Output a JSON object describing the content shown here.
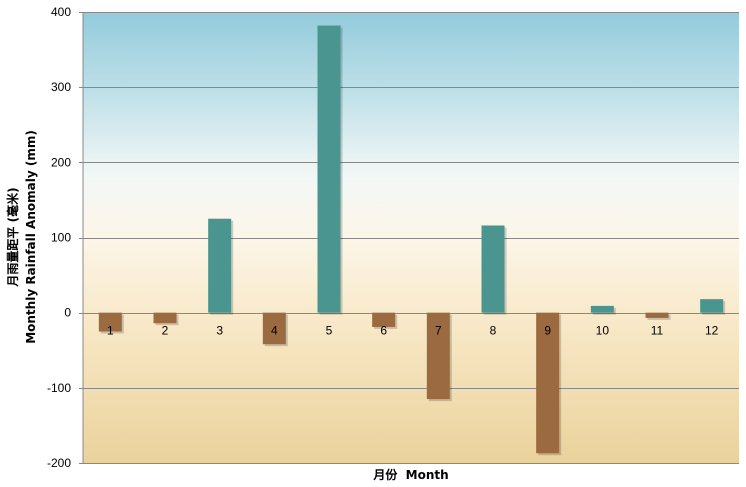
{
  "chart_data": {
    "type": "bar",
    "xlabel": "月份  Month",
    "ylabel_zh": "月雨量距平 (毫米)",
    "ylabel_en": "Monthly Rainfall Anomaly (mm)",
    "categories": [
      "1",
      "2",
      "3",
      "4",
      "5",
      "6",
      "7",
      "8",
      "9",
      "10",
      "11",
      "12"
    ],
    "values": [
      -25,
      -14,
      125,
      -42,
      382,
      -19,
      -115,
      116,
      -187,
      9,
      -7,
      18
    ],
    "ylim": [
      -200,
      400
    ],
    "yticks": [
      -200,
      -100,
      0,
      100,
      200,
      300,
      400
    ],
    "grid": true,
    "legend": "none",
    "colors": {
      "positive": "#4a9590",
      "negative": "#9c6a40",
      "gridline": "#888888"
    }
  }
}
